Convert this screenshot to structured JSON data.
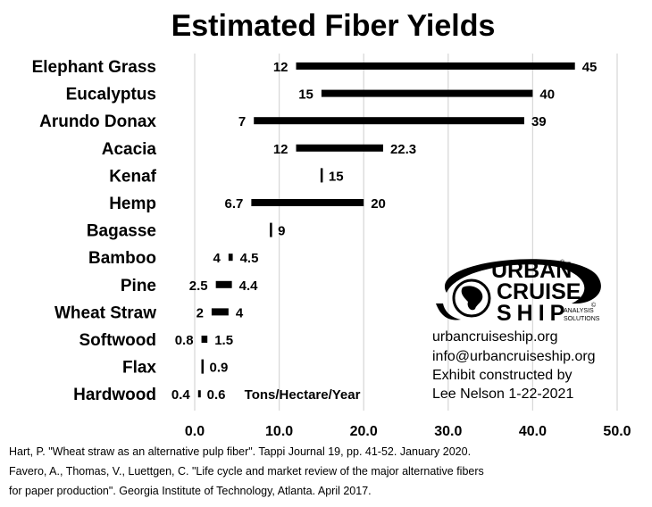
{
  "chart_data": {
    "type": "bar",
    "title": "Estimated Fiber Yields",
    "unit_label": "Tons/Hectare/Year",
    "xlim": [
      0,
      50
    ],
    "x_ticks": [
      "0.0",
      "10.0",
      "20.0",
      "30.0",
      "40.0",
      "50.0"
    ],
    "grid": true,
    "bar_color": "#000000",
    "categories": [
      "Elephant Grass",
      "Eucalyptus",
      "Arundo Donax",
      "Acacia",
      "Kenaf",
      "Hemp",
      "Bagasse",
      "Bamboo",
      "Pine",
      "Wheat Straw",
      "Softwood",
      "Flax",
      "Hardwood"
    ],
    "ranges": [
      {
        "low": 12,
        "high": 45,
        "low_label": "12",
        "high_label": "45"
      },
      {
        "low": 15,
        "high": 40,
        "low_label": "15",
        "high_label": "40"
      },
      {
        "low": 7,
        "high": 39,
        "low_label": "7",
        "high_label": "39"
      },
      {
        "low": 12,
        "high": 22.3,
        "low_label": "12",
        "high_label": "22.3"
      },
      {
        "low": 15,
        "high": 15,
        "low_label": "",
        "high_label": "15"
      },
      {
        "low": 6.7,
        "high": 20,
        "low_label": "6.7",
        "high_label": "20"
      },
      {
        "low": 9,
        "high": 9,
        "low_label": "",
        "high_label": "9"
      },
      {
        "low": 4,
        "high": 4.5,
        "low_label": "4",
        "high_label": "4.5"
      },
      {
        "low": 2.5,
        "high": 4.4,
        "low_label": "2.5",
        "high_label": "4.4"
      },
      {
        "low": 2,
        "high": 4,
        "low_label": "2",
        "high_label": "4"
      },
      {
        "low": 0.8,
        "high": 1.5,
        "low_label": "0.8",
        "high_label": "1.5"
      },
      {
        "low": 0.9,
        "high": 0.9,
        "low_label": "",
        "high_label": "0.9"
      },
      {
        "low": 0.4,
        "high": 0.6,
        "low_label": "0.4",
        "high_label": "0.6"
      }
    ]
  },
  "logo": {
    "line1": "URBAN",
    "line2": "CRUISE",
    "line3": "SHIP",
    "registered": "®",
    "copyright": "©",
    "tagline1": "ANALYSIS",
    "tagline2": "SOLUTIONS"
  },
  "info": {
    "website": "urbancruiseship.org",
    "email": "info@urbancruiseship.org",
    "line3": "Exhibit constructed by",
    "line4": "Lee Nelson 1-22-2021"
  },
  "references": [
    "Hart, P. \"Wheat straw as an alternative pulp fiber\". Tappi Journal 19, pp. 41-52. January 2020.",
    "Favero, A., Thomas, V., Luettgen, C. \"Life cycle and market review of the major alternative fibers",
    "for paper production\". Georgia Institute of Technology, Atlanta. April 2017."
  ]
}
